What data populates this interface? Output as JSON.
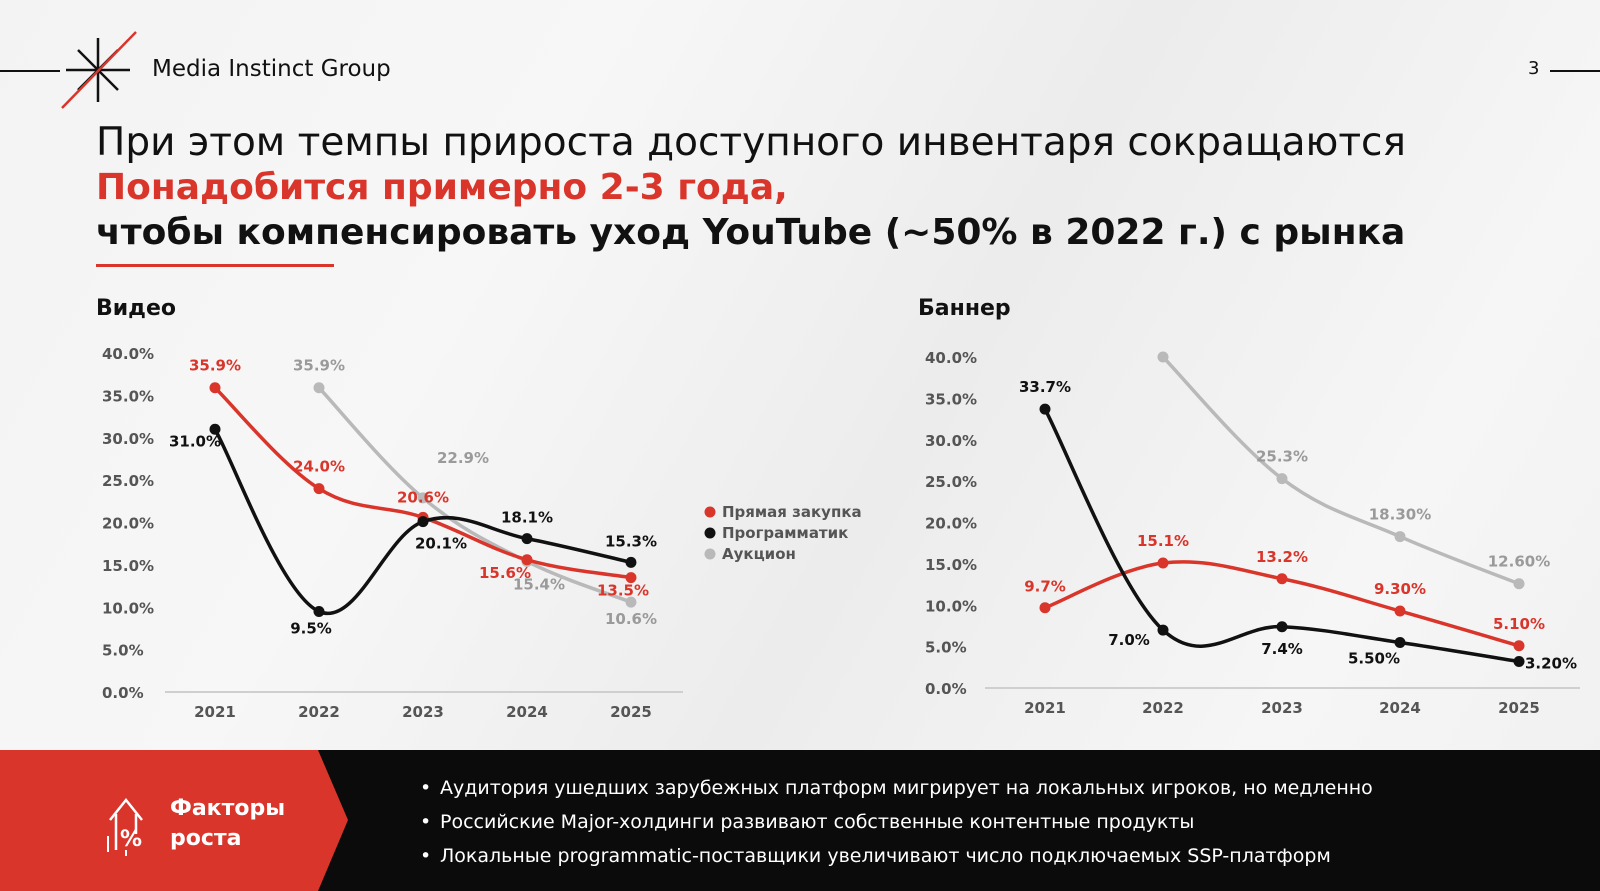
{
  "header": {
    "brand": "Media Instinct Group",
    "page_number": "3"
  },
  "title": {
    "line1": "При этом темпы прироста доступного инвентаря сокращаются",
    "line2": "Понадобится примерно 2-3 года,",
    "line3": "чтобы компенсировать уход YouTube (~50% в 2022 г.) с рынка"
  },
  "colors": {
    "accent_red": "#d9352b",
    "programmatic_black": "#111111",
    "auction_gray": "#b9b9b9"
  },
  "chart_data": [
    {
      "type": "line",
      "title": "Видео",
      "x": [
        "2021",
        "2022",
        "2023",
        "2024",
        "2025"
      ],
      "yticks": [
        "0.0%",
        "5.0%",
        "10.0%",
        "15.0%",
        "20.0%",
        "25.0%",
        "30.0%",
        "35.0%",
        "40.0%"
      ],
      "ylim": [
        0,
        40
      ],
      "legend_position": "right",
      "series": [
        {
          "name": "Прямая закупка",
          "color": "#d9352b",
          "values": [
            35.9,
            24.0,
            20.6,
            15.6,
            13.5
          ],
          "labels": [
            "35.9%",
            "24.0%",
            "20.6%",
            "15.6%",
            "13.5%"
          ]
        },
        {
          "name": "Программатик",
          "color": "#111111",
          "values": [
            31.0,
            9.5,
            20.1,
            18.1,
            15.3
          ],
          "labels": [
            "31.0%",
            "9.5%",
            "20.1%",
            "18.1%",
            "15.3%"
          ]
        },
        {
          "name": "Аукцион",
          "color": "#b9b9b9",
          "values": [
            null,
            35.9,
            22.9,
            15.4,
            10.6
          ],
          "labels": [
            null,
            "35.9%",
            "22.9%",
            "15.4%",
            "10.6%"
          ]
        }
      ]
    },
    {
      "type": "line",
      "title": "Баннер",
      "x": [
        "2021",
        "2022",
        "2023",
        "2024",
        "2025"
      ],
      "yticks": [
        "0.0%",
        "5.0%",
        "10.0%",
        "15.0%",
        "20.0%",
        "25.0%",
        "30.0%",
        "35.0%",
        "40.0%"
      ],
      "ylim": [
        0,
        40
      ],
      "series": [
        {
          "name": "Прямая закупка",
          "color": "#d9352b",
          "values": [
            9.7,
            15.1,
            13.2,
            9.3,
            5.1
          ],
          "labels": [
            "9.7%",
            "15.1%",
            "13.2%",
            "9.30%",
            "5.10%"
          ]
        },
        {
          "name": "Программатик",
          "color": "#111111",
          "values": [
            33.7,
            7.0,
            7.4,
            5.5,
            3.2
          ],
          "labels": [
            "33.7%",
            "7.0%",
            "7.4%",
            "5.50%",
            "3.20%"
          ]
        },
        {
          "name": "Аукцион",
          "color": "#b9b9b9",
          "values": [
            null,
            40.0,
            25.3,
            18.3,
            12.6
          ],
          "labels": [
            null,
            null,
            "25.3%",
            "18.30%",
            "12.60%"
          ]
        }
      ]
    }
  ],
  "factors": {
    "label": "Факторы\nроста",
    "icon": "growth-percent-icon",
    "bullets": [
      "Аудитория ушедших зарубежных платформ мигрирует на локальных игроков, но медленно",
      "Российские Major-холдинги развивают собственные контентные продукты",
      "Локальные programmatic-поставщики увеличивают число подключаемых SSP-платформ"
    ]
  }
}
